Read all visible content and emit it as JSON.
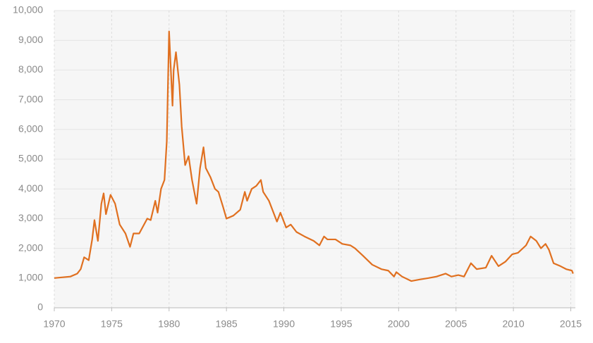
{
  "chart_data": {
    "type": "line",
    "x": [
      1970,
      1971.4,
      1972,
      1972.3,
      1972.6,
      1973,
      1973.3,
      1973.5,
      1973.8,
      1974.1,
      1974.3,
      1974.5,
      1974.9,
      1975.3,
      1975.7,
      1976.2,
      1976.6,
      1976.9,
      1977.4,
      1978.1,
      1978.4,
      1978.8,
      1979,
      1979.3,
      1979.6,
      1979.8,
      1980,
      1980.3,
      1980.4,
      1980.6,
      1980.9,
      1981.1,
      1981.4,
      1981.7,
      1982,
      1982.4,
      1982.7,
      1983,
      1983.2,
      1983.6,
      1984,
      1984.3,
      1984.7,
      1985,
      1985.6,
      1986.2,
      1986.6,
      1986.8,
      1987.2,
      1987.6,
      1988,
      1988.2,
      1988.7,
      1989.4,
      1989.7,
      1990.2,
      1990.6,
      1991.1,
      1991.8,
      1992.6,
      1993.1,
      1993.5,
      1993.8,
      1994.5,
      1995.1,
      1995.8,
      1996.2,
      1996.9,
      1997.7,
      1998.5,
      1999.1,
      1999.6,
      1999.8,
      2000.3,
      2001.1,
      2001.8,
      2002.6,
      2003.3,
      2004.1,
      2004.6,
      2005.2,
      2005.7,
      2006.3,
      2006.8,
      2007.6,
      2008.1,
      2008.7,
      2009.3,
      2009.9,
      2010.4,
      2011.1,
      2011.5,
      2012,
      2012.4,
      2012.8,
      2013.1,
      2013.5,
      2014.1,
      2014.6,
      2015.1,
      2015.2
    ],
    "series": [
      {
        "color": "#e07020",
        "values": [
          1000,
          1050,
          1150,
          1300,
          1700,
          1600,
          2300,
          2950,
          2250,
          3500,
          3850,
          3150,
          3800,
          3500,
          2800,
          2500,
          2050,
          2500,
          2500,
          3000,
          2950,
          3600,
          3200,
          4000,
          4300,
          5600,
          9300,
          6800,
          8000,
          8600,
          7500,
          6100,
          4800,
          5100,
          4300,
          3500,
          4700,
          5400,
          4700,
          4400,
          4000,
          3900,
          3400,
          3000,
          3100,
          3300,
          3900,
          3600,
          4000,
          4100,
          4300,
          3900,
          3600,
          2900,
          3200,
          2700,
          2800,
          2550,
          2400,
          2250,
          2100,
          2400,
          2300,
          2300,
          2150,
          2100,
          2000,
          1750,
          1450,
          1300,
          1250,
          1050,
          1200,
          1050,
          900,
          950,
          1000,
          1050,
          1150,
          1050,
          1100,
          1050,
          1500,
          1300,
          1350,
          1750,
          1400,
          1550,
          1800,
          1850,
          2100,
          2400,
          2250,
          2000,
          2150,
          1950,
          1500,
          1400,
          1300,
          1250,
          1150
        ]
      }
    ],
    "xlim": [
      1970,
      2015.4
    ],
    "xticks": [
      1970,
      1975,
      1980,
      1985,
      1990,
      1995,
      2000,
      2005,
      2010,
      2015
    ],
    "ylim": [
      0,
      10000
    ],
    "yticks": [
      0,
      {
        "value": 1000,
        "label": "1,000"
      },
      {
        "value": 2000,
        "label": "2,000"
      },
      {
        "value": 3000,
        "label": "3,000"
      },
      {
        "value": 4000,
        "label": "4,000"
      },
      {
        "value": 5000,
        "label": "5,000"
      },
      {
        "value": 6000,
        "label": "6,000"
      },
      {
        "value": 7000,
        "label": "7,000"
      },
      {
        "value": 8000,
        "label": "8,000"
      },
      {
        "value": 9000,
        "label": "9,000"
      },
      {
        "value": 10000,
        "label": "10,000"
      }
    ],
    "grid": true
  }
}
